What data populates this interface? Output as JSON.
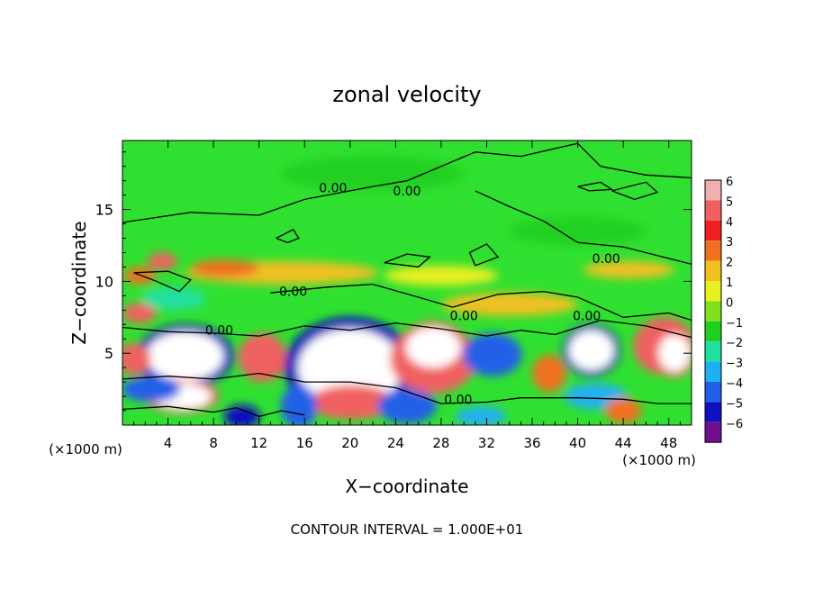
{
  "chart_data": {
    "type": "heatmap",
    "title": "zonal velocity",
    "xlabel": "X−coordinate",
    "ylabel": "Z−coordinate",
    "x_unit_left": "(×1000 m)",
    "x_unit_right": "(×1000 m)",
    "footer": "CONTOUR INTERVAL = 1.000E+01",
    "xlim": [
      0,
      50
    ],
    "ylim": [
      0,
      19.8
    ],
    "x_ticks": [
      {
        "value": 4,
        "label": "4"
      },
      {
        "value": 8,
        "label": "8"
      },
      {
        "value": 12,
        "label": "12"
      },
      {
        "value": 16,
        "label": "16"
      },
      {
        "value": 20,
        "label": "20"
      },
      {
        "value": 24,
        "label": "24"
      },
      {
        "value": 28,
        "label": "28"
      },
      {
        "value": 32,
        "label": "32"
      },
      {
        "value": 36,
        "label": "36"
      },
      {
        "value": 40,
        "label": "40"
      },
      {
        "value": 44,
        "label": "44"
      },
      {
        "value": 48,
        "label": "48"
      }
    ],
    "y_ticks": [
      {
        "value": 5,
        "label": "5"
      },
      {
        "value": 10,
        "label": "10"
      },
      {
        "value": 15,
        "label": "15"
      }
    ],
    "colorbar": {
      "levels": [
        6,
        5,
        4,
        3,
        2,
        1,
        0,
        -1,
        -2,
        -3,
        -4,
        -5,
        -6
      ],
      "labels": [
        "6",
        "5",
        "4",
        "3",
        "2",
        "1",
        "0",
        "−1",
        "−2",
        "−3",
        "−4",
        "−5",
        "−6"
      ],
      "colors": [
        "#f0b0b0",
        "#f06060",
        "#f02020",
        "#f07020",
        "#f0c020",
        "#e8f020",
        "#80e020",
        "#20d020",
        "#20e0a0",
        "#20b0f0",
        "#2060e8",
        "#1010c0",
        "#701090"
      ]
    },
    "contour_labels": [
      {
        "x": 18.5,
        "y": 16.5,
        "text": "0.00"
      },
      {
        "x": 25.0,
        "y": 16.3,
        "text": "0.00"
      },
      {
        "x": 42.5,
        "y": 11.6,
        "text": "0.00"
      },
      {
        "x": 15.0,
        "y": 9.3,
        "text": "0.00"
      },
      {
        "x": 30.0,
        "y": 7.6,
        "text": "0.00"
      },
      {
        "x": 40.8,
        "y": 7.6,
        "text": "0.00"
      },
      {
        "x": 8.5,
        "y": 6.6,
        "text": "0.00"
      },
      {
        "x": 29.5,
        "y": 1.8,
        "text": "0.00"
      }
    ],
    "zero_contours": [
      [
        [
          0,
          14.1
        ],
        [
          6,
          14.8
        ],
        [
          12,
          14.6
        ],
        [
          16,
          15.7
        ],
        [
          22,
          16.6
        ],
        [
          25,
          17.0
        ],
        [
          31,
          19.0
        ],
        [
          35,
          18.7
        ],
        [
          40,
          19.6
        ],
        [
          42,
          18.0
        ],
        [
          46,
          17.4
        ],
        [
          50,
          17.2
        ]
      ],
      [
        [
          31,
          16.3
        ],
        [
          34,
          15.2
        ],
        [
          37,
          14.2
        ],
        [
          40,
          12.7
        ],
        [
          44,
          12.4
        ],
        [
          47,
          11.8
        ],
        [
          50,
          11.2
        ]
      ],
      [
        [
          13,
          9.2
        ],
        [
          18,
          9.6
        ],
        [
          22,
          9.8
        ],
        [
          26,
          8.9
        ],
        [
          29,
          8.2
        ],
        [
          33,
          9.1
        ],
        [
          37,
          9.3
        ],
        [
          40,
          8.9
        ],
        [
          44,
          7.5
        ],
        [
          48,
          7.8
        ],
        [
          50,
          7.3
        ]
      ],
      [
        [
          0,
          6.8
        ],
        [
          4,
          6.5
        ],
        [
          8,
          6.4
        ],
        [
          12,
          6.2
        ],
        [
          16,
          6.9
        ],
        [
          20,
          6.6
        ],
        [
          24,
          7.1
        ],
        [
          28,
          6.7
        ],
        [
          32,
          6.2
        ],
        [
          35,
          6.6
        ],
        [
          38,
          6.3
        ],
        [
          42,
          7.3
        ],
        [
          46,
          6.9
        ],
        [
          50,
          6.1
        ]
      ],
      [
        [
          0,
          3.2
        ],
        [
          4,
          3.4
        ],
        [
          8,
          3.2
        ],
        [
          12,
          3.6
        ],
        [
          16,
          3.0
        ],
        [
          20,
          3.0
        ],
        [
          24,
          2.6
        ],
        [
          28,
          1.5
        ],
        [
          32,
          1.6
        ],
        [
          35,
          1.9
        ],
        [
          38,
          1.9
        ],
        [
          40,
          1.9
        ],
        [
          44,
          1.8
        ],
        [
          47,
          1.5
        ],
        [
          50,
          1.5
        ]
      ],
      [
        [
          0,
          1.1
        ],
        [
          4,
          1.3
        ],
        [
          8,
          0.9
        ],
        [
          10,
          1.2
        ],
        [
          12,
          0.6
        ],
        [
          14,
          1.0
        ],
        [
          16,
          0.7
        ]
      ],
      [
        [
          13.5,
          13.0
        ],
        [
          15,
          13.6
        ],
        [
          15.5,
          13.0
        ],
        [
          14.5,
          12.7
        ],
        [
          13.5,
          13.0
        ]
      ],
      [
        [
          23,
          11.3
        ],
        [
          25,
          11.9
        ],
        [
          27,
          11.7
        ],
        [
          26,
          11.0
        ],
        [
          23,
          11.3
        ]
      ],
      [
        [
          40,
          16.6
        ],
        [
          42,
          16.9
        ],
        [
          43,
          16.4
        ],
        [
          41,
          16.3
        ],
        [
          40,
          16.6
        ]
      ],
      [
        [
          43,
          16.3
        ],
        [
          46,
          16.9
        ],
        [
          47,
          16.2
        ],
        [
          45,
          15.7
        ],
        [
          43,
          16.3
        ]
      ],
      [
        [
          30.5,
          12.0
        ],
        [
          32,
          12.6
        ],
        [
          33,
          11.7
        ],
        [
          31,
          11.1
        ],
        [
          30.5,
          12.0
        ]
      ],
      [
        [
          1,
          10.6
        ],
        [
          3,
          10.0
        ],
        [
          5,
          9.3
        ],
        [
          6,
          10.1
        ],
        [
          4,
          10.7
        ],
        [
          1,
          10.6
        ]
      ]
    ],
    "blobs": [
      {
        "x": 5.5,
        "y": 4.8,
        "rx": 3.4,
        "ry": 1.7,
        "value": -6
      },
      {
        "x": 5.2,
        "y": 2.0,
        "rx": 2.6,
        "ry": 0.9,
        "value": 6
      },
      {
        "x": 1.0,
        "y": 4.6,
        "rx": 1.5,
        "ry": 1.1,
        "value": 5
      },
      {
        "x": 2.5,
        "y": 2.5,
        "rx": 2.6,
        "ry": 0.9,
        "value": -4
      },
      {
        "x": 12.3,
        "y": 4.7,
        "rx": 2.1,
        "ry": 1.7,
        "value": 5
      },
      {
        "x": 10.5,
        "y": 0.6,
        "rx": 1.6,
        "ry": 0.8,
        "value": -5
      },
      {
        "x": 20.0,
        "y": 4.0,
        "rx": 4.6,
        "ry": 2.7,
        "value": -6
      },
      {
        "x": 20.2,
        "y": 1.6,
        "rx": 3.8,
        "ry": 1.2,
        "value": 5
      },
      {
        "x": 15.5,
        "y": 1.3,
        "rx": 1.6,
        "ry": 1.5,
        "value": -4
      },
      {
        "x": 27.3,
        "y": 4.6,
        "rx": 3.8,
        "ry": 2.4,
        "value": 5
      },
      {
        "x": 27.3,
        "y": 5.4,
        "rx": 2.4,
        "ry": 1.4,
        "value": 6
      },
      {
        "x": 25.0,
        "y": 1.3,
        "rx": 2.6,
        "ry": 1.2,
        "value": -4
      },
      {
        "x": 32.5,
        "y": 4.9,
        "rx": 2.6,
        "ry": 1.5,
        "value": -4
      },
      {
        "x": 31.5,
        "y": 0.6,
        "rx": 2.2,
        "ry": 0.7,
        "value": -3
      },
      {
        "x": 37.5,
        "y": 3.6,
        "rx": 1.5,
        "ry": 1.3,
        "value": 3
      },
      {
        "x": 41.2,
        "y": 5.2,
        "rx": 2.0,
        "ry": 1.4,
        "value": -6
      },
      {
        "x": 41.6,
        "y": 2.0,
        "rx": 2.8,
        "ry": 0.9,
        "value": -3
      },
      {
        "x": 47.6,
        "y": 5.5,
        "rx": 2.7,
        "ry": 2.0,
        "value": 5
      },
      {
        "x": 48.5,
        "y": 5.0,
        "rx": 1.4,
        "ry": 1.3,
        "value": 6
      },
      {
        "x": 44.0,
        "y": 1.0,
        "rx": 1.6,
        "ry": 0.9,
        "value": 3
      },
      {
        "x": 3.5,
        "y": 11.4,
        "rx": 1.3,
        "ry": 0.6,
        "value": 5
      },
      {
        "x": 1.5,
        "y": 10.4,
        "rx": 1.4,
        "ry": 0.6,
        "value": 3
      },
      {
        "x": 14.0,
        "y": 10.6,
        "rx": 8.5,
        "ry": 0.8,
        "value": 2
      },
      {
        "x": 9.0,
        "y": 10.9,
        "rx": 3.0,
        "ry": 0.6,
        "value": 3
      },
      {
        "x": 28.0,
        "y": 10.4,
        "rx": 5.0,
        "ry": 0.7,
        "value": 1
      },
      {
        "x": 1.5,
        "y": 7.8,
        "rx": 1.5,
        "ry": 0.7,
        "value": 5
      },
      {
        "x": 4.5,
        "y": 8.8,
        "rx": 2.8,
        "ry": 0.8,
        "value": -2
      },
      {
        "x": 44.5,
        "y": 10.8,
        "rx": 4.0,
        "ry": 0.6,
        "value": 2
      },
      {
        "x": 34.0,
        "y": 8.4,
        "rx": 6.0,
        "ry": 0.8,
        "value": 2
      },
      {
        "x": 22.0,
        "y": 17.5,
        "rx": 8.0,
        "ry": 1.2,
        "value": -1
      },
      {
        "x": 40.0,
        "y": 13.5,
        "rx": 6.0,
        "ry": 1.0,
        "value": -1
      }
    ]
  }
}
